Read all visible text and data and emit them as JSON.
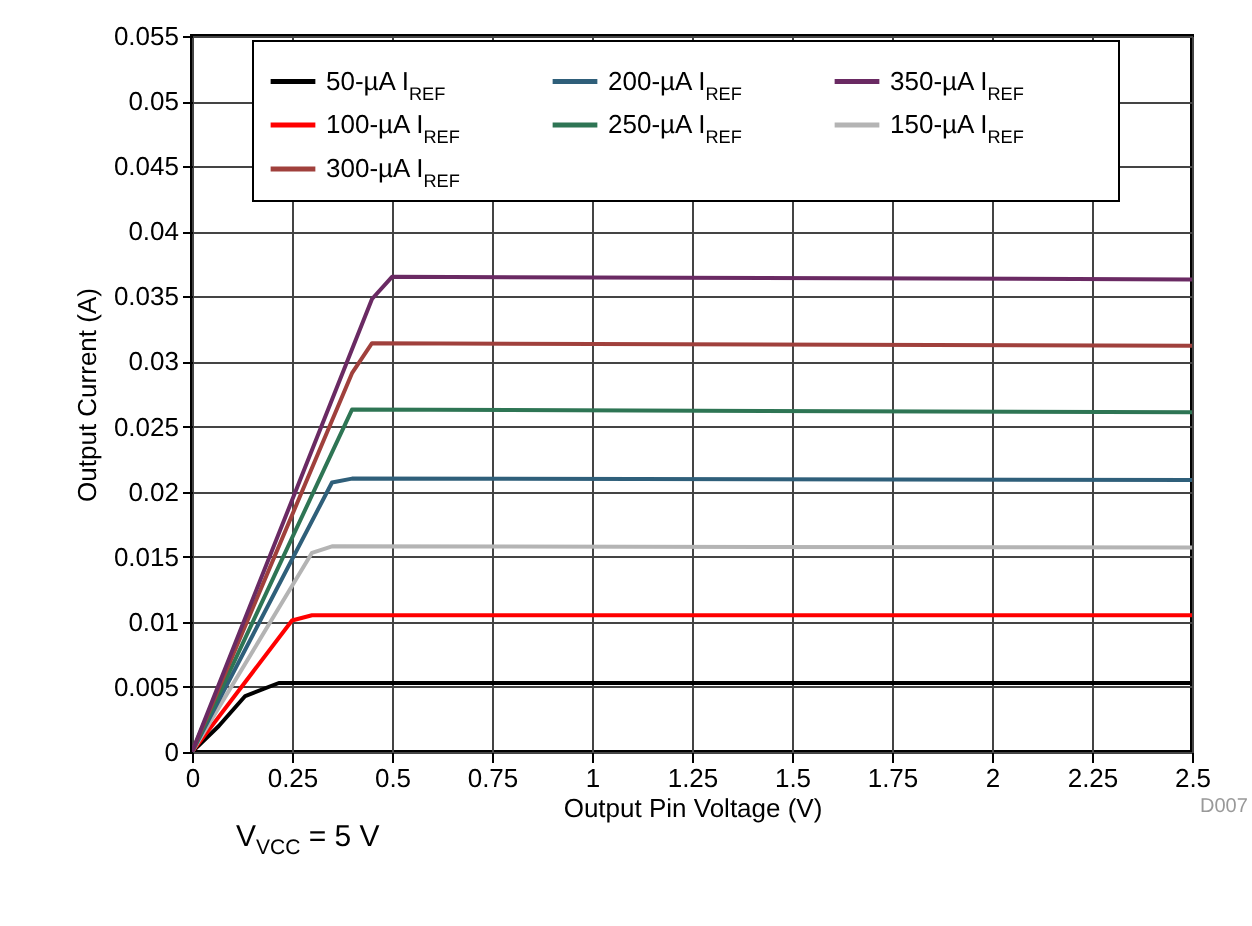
{
  "chart_data": {
    "type": "line",
    "xlabel": "Output Pin Voltage (V)",
    "ylabel": "Output Current (A)",
    "xlim": [
      0,
      2.5
    ],
    "ylim": [
      0,
      0.055
    ],
    "xticks": [
      0,
      0.25,
      0.5,
      0.75,
      1,
      1.25,
      1.5,
      1.75,
      2,
      2.25,
      2.5
    ],
    "yticks": [
      0,
      0.005,
      0.01,
      0.015,
      0.02,
      0.025,
      0.03,
      0.035,
      0.04,
      0.045,
      0.05,
      0.055
    ],
    "grid": true,
    "legend": "top",
    "series": [
      {
        "name": "50-µA I$_{REF}$",
        "color": "#000000",
        "x": [
          0,
          0.067,
          0.133,
          0.217,
          0.25,
          2.5
        ],
        "values": [
          0,
          0.002,
          0.0043,
          0.0053,
          0.0053,
          0.0053
        ]
      },
      {
        "name": "100-µA I$_{REF}$",
        "color": "#ff0000",
        "x": [
          0,
          0.25,
          0.3,
          2.5
        ],
        "values": [
          0,
          0.0101,
          0.0105,
          0.0105
        ]
      },
      {
        "name": "150-µA I$_{REF}$",
        "color": "#b4b4b4",
        "x": [
          0,
          0.3,
          0.35,
          2.5
        ],
        "values": [
          0,
          0.0153,
          0.0158,
          0.0157
        ]
      },
      {
        "name": "200-µA I$_{REF}$",
        "color": "#2f5f7a",
        "x": [
          0,
          0.35,
          0.4,
          2.5
        ],
        "values": [
          0,
          0.0207,
          0.021,
          0.0209
        ]
      },
      {
        "name": "250-µA I$_{REF}$",
        "color": "#2e7554",
        "x": [
          0,
          0.4,
          2.5
        ],
        "values": [
          0,
          0.0263,
          0.0261
        ]
      },
      {
        "name": "300-µA I$_{REF}$",
        "color": "#a0403c",
        "x": [
          0,
          0.4,
          0.45,
          2.5
        ],
        "values": [
          0,
          0.0291,
          0.0314,
          0.0312
        ]
      },
      {
        "name": "350-µA I$_{REF}$",
        "color": "#6a2a63",
        "x": [
          0,
          0.45,
          0.5,
          2.5
        ],
        "values": [
          0,
          0.0348,
          0.0365,
          0.0363
        ]
      }
    ],
    "annotations": [
      "D007",
      "V$_{VCC}$ = 5 V"
    ]
  }
}
